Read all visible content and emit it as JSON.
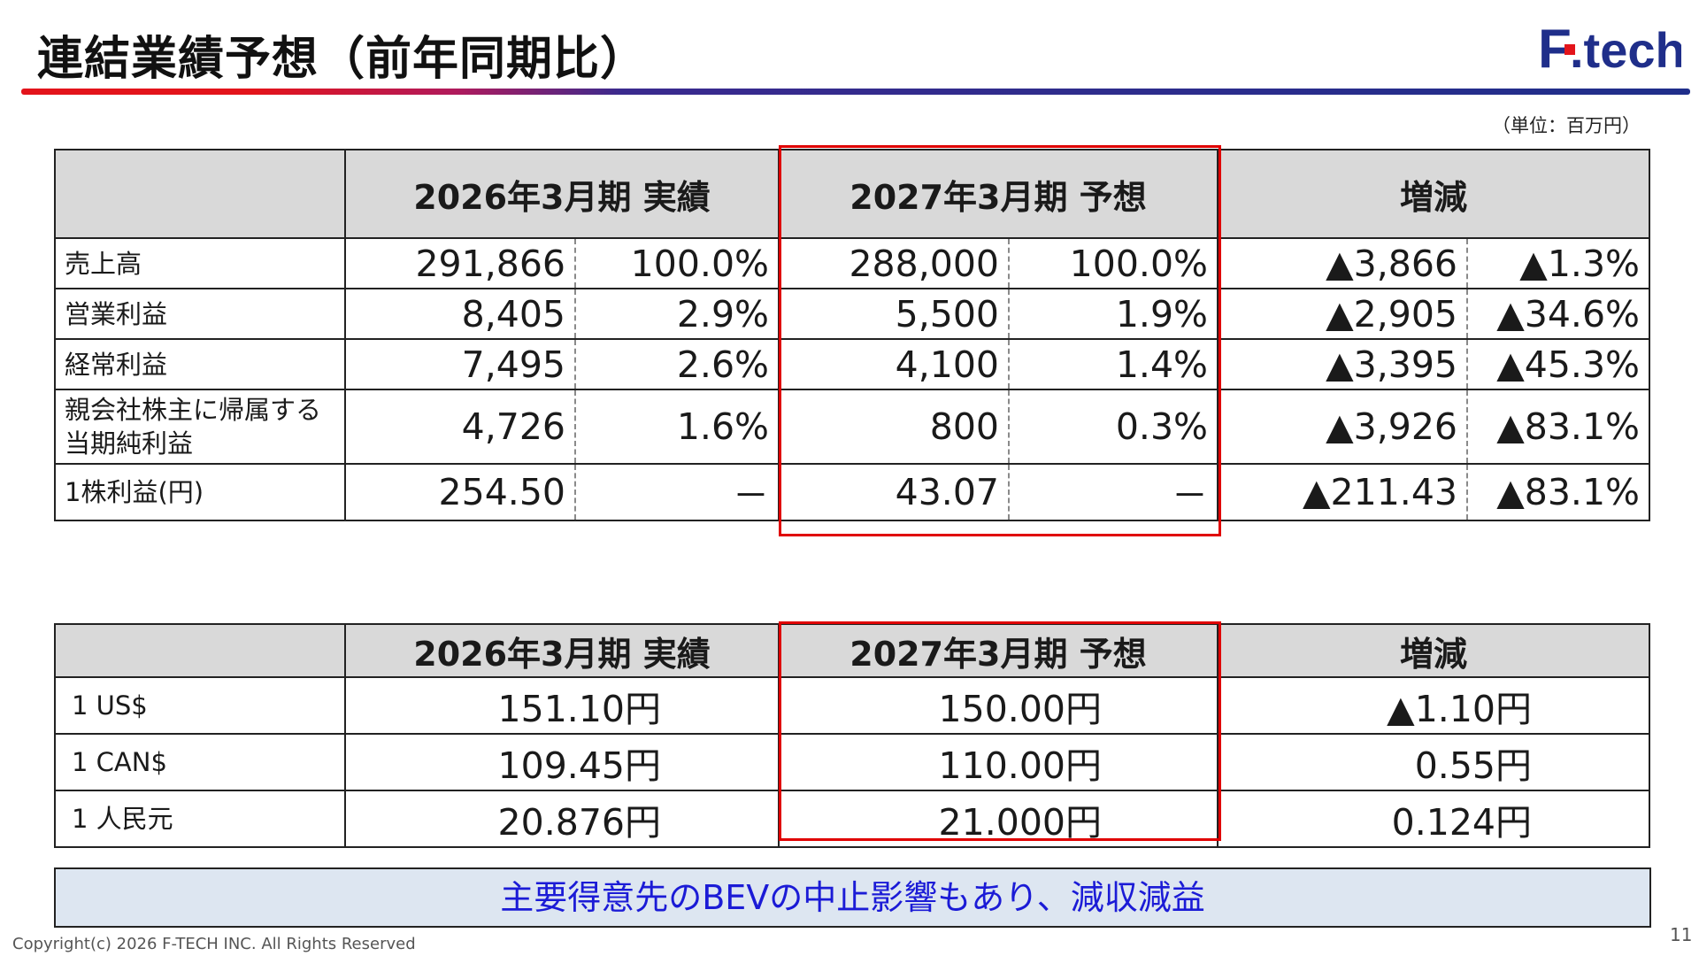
{
  "header": {
    "title": "連結業績予想（前年同期比）",
    "unit": "（単位：百万円）"
  },
  "logo": {
    "text_f": "F",
    "text_rest": ".tech",
    "color": "#1f2e8a",
    "accent": "#e3141b"
  },
  "colors": {
    "highlight": "#e00000",
    "banner_bg": "#dde6f1",
    "banner_text": "#1b1bd6",
    "header_bg": "#d9d9d9"
  },
  "table1": {
    "headers": [
      "",
      "2026年3月期 実績",
      "2027年3月期 予想",
      "増減"
    ],
    "rows": [
      {
        "label": "売上高",
        "cells": [
          "291,866",
          "100.0%",
          "288,000",
          "100.0%",
          "▲3,866",
          "▲1.3%"
        ]
      },
      {
        "label": "営業利益",
        "cells": [
          "8,405",
          "2.9%",
          "5,500",
          "1.9%",
          "▲2,905",
          "▲34.6%"
        ]
      },
      {
        "label": "経常利益",
        "cells": [
          "7,495",
          "2.6%",
          "4,100",
          "1.4%",
          "▲3,395",
          "▲45.3%"
        ]
      },
      {
        "label_line1": "親会社株主に帰属する",
        "label_line2": "当期純利益",
        "cells": [
          "4,726",
          "1.6%",
          "800",
          "0.3%",
          "▲3,926",
          "▲83.1%"
        ]
      },
      {
        "label": "1株利益(円)",
        "cells": [
          "254.50",
          "－",
          "43.07",
          "－",
          "▲211.43",
          "▲83.1%"
        ]
      }
    ]
  },
  "table2": {
    "headers": [
      "",
      "2026年3月期 実績",
      "2027年3月期 予想",
      "増減"
    ],
    "rows": [
      {
        "label": "1 US$",
        "cells": [
          "151.10円",
          "150.00円",
          "▲1.10円"
        ]
      },
      {
        "label": "1 CAN$",
        "cells": [
          "109.45円",
          "110.00円",
          "0.55円"
        ]
      },
      {
        "label": "1 人民元",
        "cells": [
          "20.876円",
          "21.000円",
          "0.124円"
        ]
      }
    ]
  },
  "banner": {
    "text": "主要得意先のBEVの中止影響もあり、減収減益"
  },
  "footer": {
    "copyright": "Copyright(c) 2026 F-TECH INC. All Rights Reserved",
    "page": "11"
  }
}
